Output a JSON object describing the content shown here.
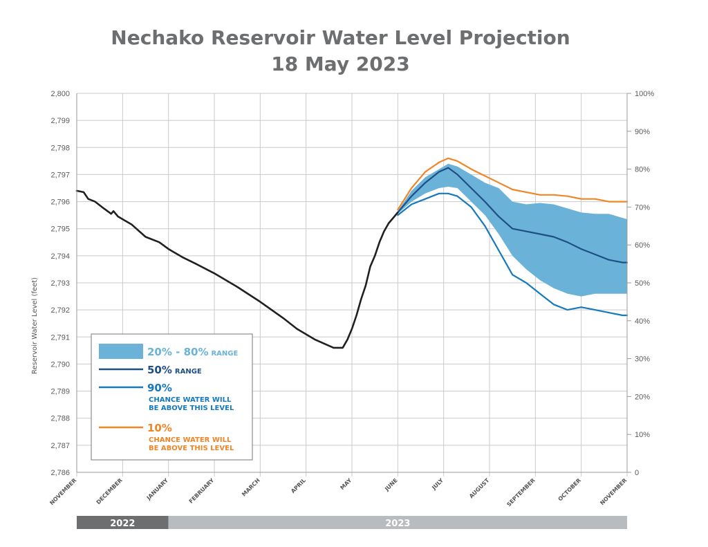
{
  "title_line1": "Nechako Reservoir Water Level Projection",
  "title_line2": "18 May 2023",
  "chart_data": {
    "type": "line",
    "title": "Nechako Reservoir Water Level Projection 18 May 2023",
    "ylabel": "Reservoir Water Level (feet)",
    "ylim": [
      2786,
      2800
    ],
    "y_ticks": [
      "2,786",
      "2,787",
      "2,788",
      "2,789",
      "2,790",
      "2,791",
      "2,792",
      "2,793",
      "2,794",
      "2,795",
      "2,796",
      "2,797",
      "2,798",
      "2,799",
      "2,800"
    ],
    "y2lim": [
      0,
      100
    ],
    "y2_ticks": [
      "0",
      "10%",
      "20%",
      "30%",
      "40%",
      "50%",
      "60%",
      "70%",
      "80%",
      "90%",
      "100%"
    ],
    "x_unit": "months since start of November 2022",
    "xlim": [
      0,
      12
    ],
    "x_ticks": [
      "NOVEMBER",
      "DECEMBER",
      "JANUARY",
      "FEBRUARY",
      "MARCH",
      "APRIL",
      "MAY",
      "JUNE",
      "JULY",
      "AUGUST",
      "SEPTEMBER",
      "OCTOBER",
      "NOVEMBER"
    ],
    "year_bands": [
      {
        "label": "2022",
        "from": 0,
        "to": 2,
        "color": "#6d6e70"
      },
      {
        "label": "2023",
        "from": 2,
        "to": 12,
        "color": "#b8bcbf"
      }
    ],
    "grid": true,
    "legend_position": "bottom-left",
    "colors": {
      "actual": "#231f20",
      "band": "#6ab2d8",
      "p50": "#1d4f85",
      "p90": "#1479bd",
      "p10": "#f08526"
    },
    "legend": [
      {
        "key": "band",
        "big": "20% - 80%",
        "small": "RANGE",
        "color": "#6ab2d8"
      },
      {
        "key": "p50",
        "big": "50%",
        "small": "RANGE",
        "color": "#1d4f85"
      },
      {
        "key": "p90",
        "big": "90%",
        "small": "CHANCE WATER WILL",
        "small2": "BE ABOVE THIS LEVEL",
        "color": "#1479bd"
      },
      {
        "key": "p10",
        "big": "10%",
        "small": "CHANCE WATER WILL",
        "small2": "BE ABOVE THIS LEVEL",
        "color": "#f08526"
      }
    ],
    "series": [
      {
        "key": "actual",
        "x": [
          0,
          0.15,
          0.25,
          0.4,
          0.55,
          0.75,
          0.8,
          0.9,
          1.0,
          1.2,
          1.5,
          1.8,
          2.0,
          2.3,
          2.6,
          3.0,
          3.5,
          4.0,
          4.5,
          4.8,
          5.2,
          5.6,
          5.8,
          5.9,
          6.0,
          6.1,
          6.2,
          6.3,
          6.4,
          6.5,
          6.6,
          6.7,
          6.8,
          6.9,
          7.0
        ],
        "y": [
          2796.4,
          2796.35,
          2796.1,
          2796.0,
          2795.8,
          2795.55,
          2795.65,
          2795.45,
          2795.35,
          2795.15,
          2794.7,
          2794.5,
          2794.25,
          2793.95,
          2793.7,
          2793.35,
          2792.85,
          2792.3,
          2791.7,
          2791.3,
          2790.9,
          2790.6,
          2790.6,
          2790.9,
          2791.3,
          2791.8,
          2792.4,
          2792.9,
          2793.6,
          2794.0,
          2794.5,
          2794.9,
          2795.2,
          2795.4,
          2795.6
        ]
      },
      {
        "key": "p50",
        "x": [
          7.0,
          7.3,
          7.6,
          7.9,
          8.1,
          8.3,
          8.6,
          8.9,
          9.2,
          9.5,
          9.8,
          10.1,
          10.4,
          10.7,
          11.0,
          11.3,
          11.6,
          11.9,
          12.0
        ],
        "y": [
          2795.6,
          2796.2,
          2796.7,
          2797.1,
          2797.25,
          2797.0,
          2796.5,
          2796.0,
          2795.45,
          2795.0,
          2794.9,
          2794.8,
          2794.7,
          2794.5,
          2794.25,
          2794.05,
          2793.85,
          2793.75,
          2793.75
        ]
      },
      {
        "key": "p90",
        "x": [
          7.0,
          7.3,
          7.6,
          7.9,
          8.1,
          8.3,
          8.6,
          8.9,
          9.2,
          9.5,
          9.8,
          10.1,
          10.4,
          10.7,
          11.0,
          11.3,
          11.6,
          11.9,
          12.0
        ],
        "y": [
          2795.5,
          2795.9,
          2796.1,
          2796.3,
          2796.3,
          2796.2,
          2795.8,
          2795.1,
          2794.2,
          2793.3,
          2793.0,
          2792.6,
          2792.2,
          2792.0,
          2792.1,
          2792.0,
          2791.9,
          2791.8,
          2791.8
        ]
      },
      {
        "key": "p10",
        "x": [
          7.0,
          7.3,
          7.6,
          7.9,
          8.1,
          8.3,
          8.6,
          8.9,
          9.2,
          9.5,
          9.8,
          10.1,
          10.4,
          10.7,
          11.0,
          11.3,
          11.6,
          11.9,
          12.0
        ],
        "y": [
          2795.7,
          2796.5,
          2797.1,
          2797.45,
          2797.6,
          2797.5,
          2797.2,
          2796.95,
          2796.7,
          2796.45,
          2796.35,
          2796.25,
          2796.25,
          2796.2,
          2796.1,
          2796.1,
          2796.0,
          2796.0,
          2796.0
        ]
      },
      {
        "key": "band",
        "x": [
          7.0,
          7.3,
          7.6,
          7.9,
          8.1,
          8.3,
          8.6,
          8.9,
          9.2,
          9.5,
          9.8,
          10.1,
          10.4,
          10.7,
          11.0,
          11.3,
          11.6,
          11.9,
          12.0
        ],
        "y_low": [
          2795.55,
          2796.0,
          2796.3,
          2796.5,
          2796.55,
          2796.5,
          2796.0,
          2795.5,
          2794.8,
          2794.0,
          2793.5,
          2793.1,
          2792.8,
          2792.6,
          2792.5,
          2792.6,
          2792.6,
          2792.6,
          2792.6
        ],
        "y_high": [
          2795.65,
          2796.4,
          2796.9,
          2797.2,
          2797.4,
          2797.3,
          2797.0,
          2796.7,
          2796.5,
          2796.0,
          2795.9,
          2795.95,
          2795.9,
          2795.75,
          2795.6,
          2795.55,
          2795.55,
          2795.4,
          2795.35
        ]
      }
    ]
  }
}
